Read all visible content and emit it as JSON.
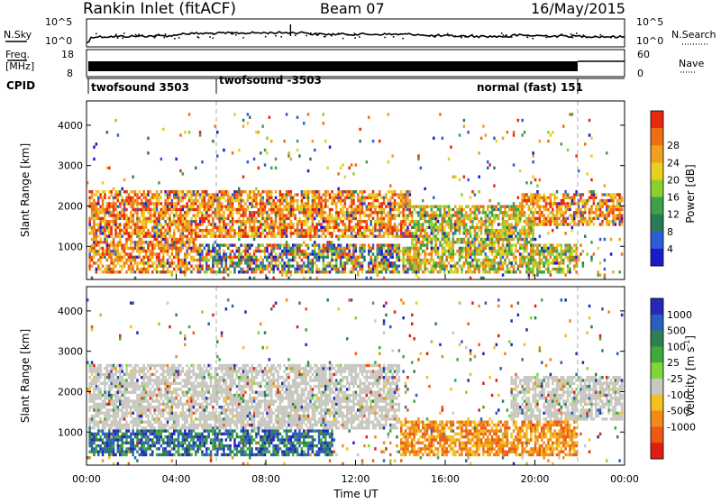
{
  "header": {
    "station": "Rankin Inlet (fitACF)",
    "beam": "Beam 07",
    "date": "16/May/2015"
  },
  "labels": {
    "nsky": "N.Sky",
    "nsearch": "N.Search",
    "freq_line1": "Freq.",
    "freq_line2": "[MHz]",
    "nave": "Nave",
    "cpid": "CPID",
    "power_label": "Power [dB]",
    "velocity_label": "Velocity [m s",
    "velocity_exp": "-1",
    "ylabel": "Slant Range [km]",
    "xlabel": "Time UT"
  },
  "noise_axis": {
    "left_ticks": [
      "10^5",
      "10^0"
    ],
    "right_ticks": [
      "10^5",
      "10^0"
    ]
  },
  "freq_axis": {
    "left_ticks": [
      "18",
      "8"
    ],
    "right_ticks": [
      "60",
      "0"
    ]
  },
  "cpid_segments": [
    {
      "label": "twofsound 3503",
      "start_hour": 0.17,
      "end_hour": 6.0
    },
    {
      "label": "twofsound -3503",
      "start_hour": 6.0,
      "end_hour": 21.75
    },
    {
      "label": "normal (fast) 151",
      "start_hour": 21.75,
      "end_hour": 24.0
    }
  ],
  "chart_data": [
    {
      "type": "heatmap",
      "title": "Power",
      "xlabel": "Time UT",
      "ylabel": "Slant Range [km]",
      "xlim": [
        0,
        24
      ],
      "ylim": [
        180,
        4600
      ],
      "x_ticks": [
        "00:00",
        "04:00",
        "08:00",
        "12:00",
        "16:00",
        "20:00",
        "00:00"
      ],
      "y_ticks": [
        1000,
        2000,
        3000,
        4000
      ],
      "colorbar": {
        "label": "Power [dB]",
        "ticks": [
          4,
          8,
          12,
          16,
          20,
          24,
          28
        ],
        "colors": [
          "#1a1acc",
          "#2e5cd6",
          "#2a7a5a",
          "#3fa04a",
          "#8ccf2e",
          "#e8d020",
          "#f0a020",
          "#ee6e14",
          "#e82810"
        ]
      },
      "regions": [
        {
          "t0": 0.1,
          "t1": 14.5,
          "r0": 1200,
          "r1": 2400,
          "level": "high"
        },
        {
          "t0": 14.5,
          "t1": 20.0,
          "r0": 1100,
          "r1": 2000,
          "level": "mid"
        },
        {
          "t0": 19.5,
          "t1": 24.0,
          "r0": 1500,
          "r1": 2300,
          "level": "high"
        },
        {
          "t0": 0.1,
          "t1": 5.0,
          "r0": 300,
          "r1": 1200,
          "level": "high"
        },
        {
          "t0": 5.0,
          "t1": 14.0,
          "r0": 300,
          "r1": 1100,
          "level": "mixed"
        },
        {
          "t0": 14.0,
          "t1": 22.0,
          "r0": 300,
          "r1": 1100,
          "level": "mid"
        }
      ],
      "vertical_markers_hours": [
        6.0,
        21.75
      ]
    },
    {
      "type": "heatmap",
      "title": "Velocity",
      "xlabel": "Time UT",
      "ylabel": "Slant Range [km]",
      "xlim": [
        0,
        24
      ],
      "ylim": [
        180,
        4600
      ],
      "x_ticks": [
        "00:00",
        "04:00",
        "08:00",
        "12:00",
        "16:00",
        "20:00",
        "00:00"
      ],
      "y_ticks": [
        1000,
        2000,
        3000,
        4000
      ],
      "colorbar": {
        "label": "Velocity [m s-1]",
        "ticks": [
          1000,
          500,
          100,
          25,
          -25,
          -100,
          -500,
          -1000
        ],
        "colors": [
          "#2626b8",
          "#2a5ec0",
          "#2f7f4f",
          "#40a83e",
          "#7ed63a",
          "#c8c8c0",
          "#f2c020",
          "#f08a18",
          "#ee5a14",
          "#e01e10"
        ]
      },
      "regions": [
        {
          "t0": 0.1,
          "t1": 14.0,
          "r0": 1100,
          "r1": 2700,
          "level": "ground"
        },
        {
          "t0": 19.0,
          "t1": 24.0,
          "r0": 1300,
          "r1": 2400,
          "level": "ground"
        },
        {
          "t0": 0.1,
          "t1": 11.0,
          "r0": 400,
          "r1": 1100,
          "level": "positive"
        },
        {
          "t0": 14.0,
          "t1": 22.0,
          "r0": 400,
          "r1": 1300,
          "level": "negative"
        }
      ],
      "vertical_markers_hours": [
        6.0,
        21.75
      ]
    }
  ]
}
